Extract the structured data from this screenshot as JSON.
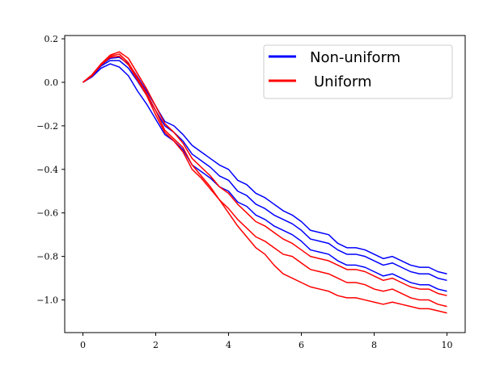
{
  "chart_data": {
    "type": "line",
    "xlim": [
      -0.5,
      10.5
    ],
    "ylim": [
      -1.15,
      0.215
    ],
    "x_ticks": [
      0,
      2,
      4,
      6,
      8,
      10
    ],
    "x_tick_labels": [
      "0",
      "2",
      "4",
      "6",
      "8",
      "10"
    ],
    "y_ticks": [
      0.2,
      0.0,
      -0.2,
      -0.4,
      -0.6,
      -0.8,
      -1.0
    ],
    "y_tick_labels": [
      "0.2",
      "0.0",
      "−0.2",
      "−0.4",
      "−0.6",
      "−0.8",
      "−1.0"
    ],
    "grid": false,
    "legend_position": "top-right",
    "legend": [
      {
        "label": "Non-uniform",
        "color": "#0000ff"
      },
      {
        "label": "Uniform",
        "color": "#ff0000"
      }
    ],
    "x": [
      0,
      0.25,
      0.5,
      0.75,
      1,
      1.25,
      1.5,
      1.75,
      2,
      2.25,
      2.5,
      2.75,
      3,
      3.25,
      3.5,
      3.75,
      4,
      4.25,
      4.5,
      4.75,
      5,
      5.25,
      5.5,
      5.75,
      6,
      6.25,
      6.5,
      6.75,
      7,
      7.25,
      7.5,
      7.75,
      8,
      8.25,
      8.5,
      8.75,
      9,
      9.25,
      9.5,
      9.75,
      10
    ],
    "series": [
      {
        "group": "Non-uniform",
        "color": "#0000ff",
        "values": [
          0.0,
          0.025,
          0.065,
          0.085,
          0.07,
          0.03,
          -0.04,
          -0.1,
          -0.17,
          -0.24,
          -0.27,
          -0.31,
          -0.38,
          -0.41,
          -0.44,
          -0.48,
          -0.5,
          -0.55,
          -0.57,
          -0.61,
          -0.63,
          -0.66,
          -0.68,
          -0.7,
          -0.73,
          -0.77,
          -0.78,
          -0.79,
          -0.82,
          -0.84,
          -0.84,
          -0.85,
          -0.87,
          -0.89,
          -0.88,
          -0.9,
          -0.92,
          -0.93,
          -0.93,
          -0.95,
          -0.96
        ]
      },
      {
        "group": "Non-uniform",
        "color": "#0000ff",
        "values": [
          0.0,
          0.03,
          0.075,
          0.1,
          0.1,
          0.065,
          0.005,
          -0.06,
          -0.13,
          -0.2,
          -0.23,
          -0.27,
          -0.33,
          -0.36,
          -0.39,
          -0.43,
          -0.45,
          -0.5,
          -0.52,
          -0.56,
          -0.58,
          -0.61,
          -0.63,
          -0.65,
          -0.68,
          -0.72,
          -0.73,
          -0.74,
          -0.77,
          -0.79,
          -0.79,
          -0.8,
          -0.82,
          -0.84,
          -0.83,
          -0.85,
          -0.87,
          -0.88,
          -0.88,
          -0.9,
          -0.91
        ]
      },
      {
        "group": "Non-uniform",
        "color": "#0000ff",
        "values": [
          0.0,
          0.03,
          0.08,
          0.11,
          0.115,
          0.085,
          0.025,
          -0.04,
          -0.11,
          -0.18,
          -0.2,
          -0.24,
          -0.29,
          -0.32,
          -0.35,
          -0.38,
          -0.4,
          -0.45,
          -0.47,
          -0.51,
          -0.53,
          -0.56,
          -0.59,
          -0.61,
          -0.64,
          -0.68,
          -0.69,
          -0.7,
          -0.74,
          -0.76,
          -0.76,
          -0.77,
          -0.79,
          -0.81,
          -0.8,
          -0.82,
          -0.84,
          -0.85,
          -0.85,
          -0.87,
          -0.88
        ]
      },
      {
        "group": "Uniform",
        "color": "#ff0000",
        "values": [
          0.0,
          0.03,
          0.08,
          0.115,
          0.12,
          0.08,
          0.01,
          -0.06,
          -0.15,
          -0.23,
          -0.27,
          -0.32,
          -0.4,
          -0.44,
          -0.49,
          -0.54,
          -0.58,
          -0.63,
          -0.67,
          -0.71,
          -0.73,
          -0.76,
          -0.79,
          -0.8,
          -0.83,
          -0.86,
          -0.87,
          -0.88,
          -0.9,
          -0.92,
          -0.92,
          -0.93,
          -0.95,
          -0.96,
          -0.95,
          -0.97,
          -0.99,
          -1.0,
          -1.0,
          -1.02,
          -1.03
        ]
      },
      {
        "group": "Uniform",
        "color": "#ff0000",
        "values": [
          0.0,
          0.035,
          0.085,
          0.125,
          0.14,
          0.11,
          0.04,
          -0.03,
          -0.11,
          -0.19,
          -0.23,
          -0.28,
          -0.35,
          -0.39,
          -0.43,
          -0.48,
          -0.51,
          -0.56,
          -0.6,
          -0.64,
          -0.66,
          -0.69,
          -0.72,
          -0.74,
          -0.77,
          -0.8,
          -0.81,
          -0.82,
          -0.84,
          -0.86,
          -0.86,
          -0.87,
          -0.89,
          -0.91,
          -0.9,
          -0.92,
          -0.94,
          -0.95,
          -0.95,
          -0.97,
          -0.98
        ]
      },
      {
        "group": "Uniform",
        "color": "#ff0000",
        "values": [
          0.0,
          0.03,
          0.085,
          0.12,
          0.13,
          0.09,
          0.02,
          -0.05,
          -0.13,
          -0.22,
          -0.26,
          -0.3,
          -0.38,
          -0.43,
          -0.48,
          -0.54,
          -0.6,
          -0.66,
          -0.71,
          -0.76,
          -0.79,
          -0.84,
          -0.88,
          -0.9,
          -0.92,
          -0.94,
          -0.95,
          -0.96,
          -0.98,
          -0.99,
          -0.99,
          -1.0,
          -1.01,
          -1.02,
          -1.01,
          -1.02,
          -1.03,
          -1.04,
          -1.04,
          -1.05,
          -1.06
        ]
      }
    ]
  }
}
